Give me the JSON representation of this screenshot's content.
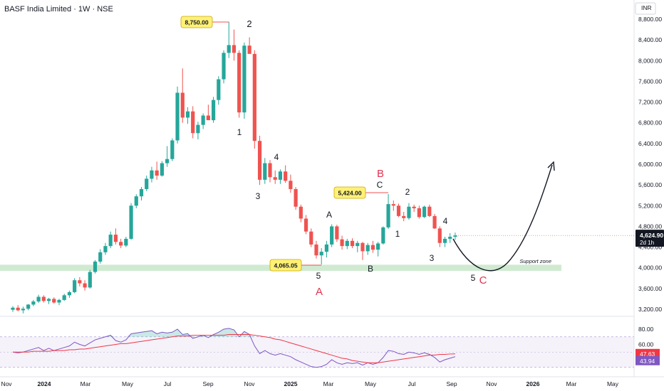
{
  "header": {
    "title": "BASF India Limited · 1W · NSE"
  },
  "price_axis": {
    "currency": "INR",
    "ticks": [
      "8,800.00",
      "8,400.00",
      "8,000.00",
      "7,600.00",
      "7,200.00",
      "6,800.00",
      "6,400.00",
      "6,000.00",
      "5,600.00",
      "5,200.00",
      "4,800.00",
      "4,400.00",
      "4,000.00",
      "3,600.00",
      "3,200.00"
    ],
    "last_price": "4,624.90",
    "countdown": "2d 1h"
  },
  "rsi_axis": {
    "ticks": [
      "80.00",
      "60.00",
      "40.00"
    ],
    "rsi_value": "43.94",
    "ma_value": "47.63"
  },
  "time_axis": {
    "labels": [
      "Nov",
      "2024",
      "Mar",
      "May",
      "Jul",
      "Sep",
      "Nov",
      "2025",
      "Mar",
      "May",
      "Jul",
      "Sep",
      "Nov",
      "2026",
      "Mar",
      "May"
    ]
  },
  "callouts": [
    {
      "id": "high",
      "text": "8,750.00"
    },
    {
      "id": "mid",
      "text": "5,424.00"
    },
    {
      "id": "low",
      "text": "4,065.05"
    }
  ],
  "support_zone_label": "Support zone",
  "wave_labels": [
    {
      "text": "2",
      "color": "#131722"
    },
    {
      "text": "1",
      "color": "#131722"
    },
    {
      "text": "4",
      "color": "#131722"
    },
    {
      "text": "3",
      "color": "#131722"
    },
    {
      "text": "A",
      "color": "#131722"
    },
    {
      "text": "5",
      "color": "#131722"
    },
    {
      "text": "A",
      "color": "#e0334f"
    },
    {
      "text": "B",
      "color": "#e0334f"
    },
    {
      "text": "C",
      "color": "#131722"
    },
    {
      "text": "B",
      "color": "#131722"
    },
    {
      "text": "2",
      "color": "#131722"
    },
    {
      "text": "1",
      "color": "#131722"
    },
    {
      "text": "4",
      "color": "#131722"
    },
    {
      "text": "3",
      "color": "#131722"
    },
    {
      "text": "5",
      "color": "#131722"
    },
    {
      "text": "C",
      "color": "#e0334f"
    }
  ],
  "colors": {
    "up": "#26a69a",
    "down": "#ef5350",
    "rsi": "#7e57c2",
    "rsi_ma": "#f23645",
    "support": "#c8e6c9",
    "callout": "#fff176"
  },
  "chart_data": {
    "type": "candlestick",
    "timeframe": "1W",
    "ylim": [
      3200,
      8900
    ],
    "support_zone": [
      3940,
      4060
    ],
    "candles": [
      [
        3190,
        3260,
        3150,
        3230
      ],
      [
        3230,
        3280,
        3160,
        3180
      ],
      [
        3180,
        3250,
        3120,
        3210
      ],
      [
        3210,
        3300,
        3180,
        3290
      ],
      [
        3290,
        3380,
        3260,
        3350
      ],
      [
        3350,
        3480,
        3320,
        3440
      ],
      [
        3440,
        3470,
        3330,
        3360
      ],
      [
        3360,
        3420,
        3300,
        3400
      ],
      [
        3400,
        3430,
        3310,
        3330
      ],
      [
        3330,
        3400,
        3280,
        3380
      ],
      [
        3380,
        3500,
        3360,
        3470
      ],
      [
        3470,
        3560,
        3420,
        3530
      ],
      [
        3530,
        3800,
        3510,
        3760
      ],
      [
        3760,
        3820,
        3640,
        3700
      ],
      [
        3700,
        3760,
        3560,
        3620
      ],
      [
        3620,
        3960,
        3600,
        3920
      ],
      [
        3920,
        4150,
        3890,
        4120
      ],
      [
        4120,
        4360,
        4080,
        4300
      ],
      [
        4300,
        4480,
        4250,
        4420
      ],
      [
        4420,
        4700,
        4380,
        4640
      ],
      [
        4640,
        4760,
        4450,
        4500
      ],
      [
        4500,
        4560,
        4380,
        4430
      ],
      [
        4430,
        4600,
        4400,
        4560
      ],
      [
        4560,
        5250,
        4540,
        5200
      ],
      [
        5200,
        5420,
        5150,
        5380
      ],
      [
        5380,
        5560,
        5300,
        5520
      ],
      [
        5520,
        5780,
        5480,
        5720
      ],
      [
        5720,
        5950,
        5650,
        5880
      ],
      [
        5880,
        6050,
        5700,
        5780
      ],
      [
        5780,
        6060,
        5760,
        6020
      ],
      [
        6020,
        6350,
        5950,
        6100
      ],
      [
        6100,
        6500,
        6060,
        6460
      ],
      [
        6460,
        7500,
        6400,
        7380
      ],
      [
        7380,
        7850,
        6800,
        6900
      ],
      [
        6900,
        7100,
        6780,
        7020
      ],
      [
        7020,
        7120,
        6500,
        6600
      ],
      [
        6600,
        6820,
        6480,
        6760
      ],
      [
        6760,
        6980,
        6680,
        6940
      ],
      [
        6940,
        7150,
        6860,
        6850
      ],
      [
        6850,
        7300,
        6800,
        7240
      ],
      [
        7240,
        7700,
        7150,
        7640
      ],
      [
        7640,
        8200,
        7560,
        8150
      ],
      [
        8150,
        8750,
        8050,
        8300
      ],
      [
        8300,
        8600,
        8000,
        8150
      ],
      [
        8150,
        8200,
        6900,
        7000
      ],
      [
        7000,
        8350,
        6880,
        8290
      ],
      [
        8290,
        8450,
        8150,
        8130
      ],
      [
        8130,
        8200,
        6300,
        6450
      ],
      [
        6450,
        6550,
        5600,
        5700
      ],
      [
        5700,
        6120,
        5620,
        6020
      ],
      [
        6020,
        6080,
        5650,
        5750
      ],
      [
        5750,
        5880,
        5620,
        5700
      ],
      [
        5700,
        5900,
        5620,
        5860
      ],
      [
        5860,
        5980,
        5640,
        5680
      ],
      [
        5680,
        5800,
        5450,
        5520
      ],
      [
        5520,
        5560,
        5120,
        5180
      ],
      [
        5180,
        5220,
        4880,
        4950
      ],
      [
        4950,
        5020,
        4650,
        4700
      ],
      [
        4700,
        4760,
        4400,
        4450
      ],
      [
        4450,
        4520,
        4180,
        4240
      ],
      [
        4240,
        4380,
        4065,
        4310
      ],
      [
        4310,
        4520,
        4200,
        4450
      ],
      [
        4450,
        4840,
        4400,
        4800
      ],
      [
        4800,
        4830,
        4500,
        4550
      ],
      [
        4550,
        4620,
        4350,
        4420
      ],
      [
        4420,
        4560,
        4360,
        4520
      ],
      [
        4520,
        4570,
        4380,
        4420
      ],
      [
        4420,
        4520,
        4300,
        4480
      ],
      [
        4480,
        4500,
        4150,
        4320
      ],
      [
        4320,
        4480,
        4250,
        4440
      ],
      [
        4440,
        4520,
        4290,
        4350
      ],
      [
        4350,
        4500,
        4220,
        4470
      ],
      [
        4470,
        4800,
        4450,
        4780
      ],
      [
        4780,
        5424,
        4750,
        5230
      ],
      [
        5230,
        5300,
        5100,
        5200
      ],
      [
        5200,
        5240,
        4980,
        5000
      ],
      [
        5000,
        5080,
        4900,
        4960
      ],
      [
        4960,
        5250,
        4930,
        5180
      ],
      [
        5180,
        5220,
        5080,
        5150
      ],
      [
        5150,
        5200,
        4950,
        4980
      ],
      [
        4980,
        5200,
        4960,
        5180
      ],
      [
        5180,
        5220,
        4980,
        5000
      ],
      [
        5000,
        5040,
        4750,
        4760
      ],
      [
        4760,
        4800,
        4400,
        4480
      ],
      [
        4480,
        4600,
        4400,
        4560
      ],
      [
        4560,
        4670,
        4480,
        4600
      ],
      [
        4600,
        4680,
        4540,
        4625
      ]
    ],
    "rsi": [
      50,
      49,
      50,
      52,
      54,
      56,
      52,
      55,
      52,
      54,
      56,
      58,
      63,
      60,
      58,
      62,
      66,
      68,
      70,
      72,
      65,
      63,
      66,
      74,
      75,
      76,
      77,
      78,
      74,
      76,
      75,
      76,
      80,
      73,
      74,
      68,
      70,
      72,
      69,
      73,
      76,
      80,
      81,
      79,
      70,
      77,
      73,
      58,
      48,
      52,
      48,
      46,
      48,
      46,
      44,
      40,
      37,
      34,
      31,
      30,
      31,
      34,
      40,
      36,
      34,
      36,
      35,
      36,
      33,
      36,
      34,
      36,
      43,
      52,
      51,
      48,
      47,
      50,
      49,
      47,
      49,
      47,
      43,
      37,
      40,
      42,
      43.94
    ],
    "rsi_ma": [
      50,
      50,
      50,
      50,
      51,
      51,
      51,
      51,
      52,
      52,
      52,
      53,
      53,
      54,
      54,
      55,
      56,
      57,
      58,
      59,
      60,
      61,
      61,
      62,
      63,
      64,
      65,
      66,
      67,
      68,
      69,
      70,
      71,
      71,
      71,
      72,
      72,
      72,
      72,
      72,
      72,
      72,
      73,
      73,
      73,
      73,
      73,
      72,
      71,
      70,
      69,
      67,
      66,
      64,
      62,
      60,
      58,
      56,
      54,
      52,
      50,
      48,
      46,
      44,
      42,
      41,
      39,
      38,
      37,
      36,
      36,
      36,
      37,
      38,
      39,
      40,
      41,
      42,
      43,
      44,
      45,
      46,
      46,
      47,
      47,
      47.5,
      47.63
    ],
    "rsi_ylim": [
      20,
      90
    ],
    "projection": {
      "target_low": 4000,
      "target_high": 6000
    }
  }
}
